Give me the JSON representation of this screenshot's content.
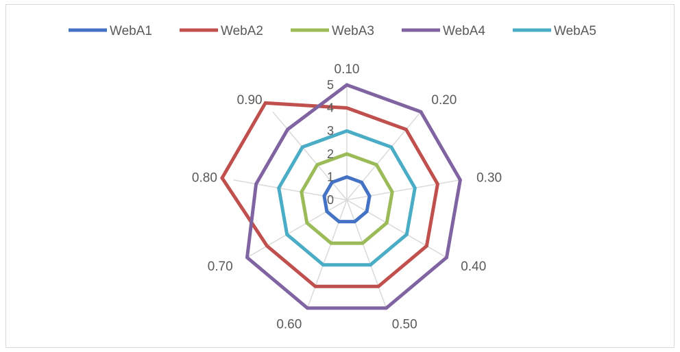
{
  "chart_data": {
    "type": "radar",
    "categories": [
      "0.10",
      "0.20",
      "0.30",
      "0.40",
      "0.50",
      "0.60",
      "0.70",
      "0.80",
      "0.90"
    ],
    "radial_ticks": [
      "0",
      "1",
      "2",
      "3",
      "4",
      "5"
    ],
    "rmax": 5,
    "legend_position": "top",
    "gridlines": false,
    "series": [
      {
        "name": "WebA1",
        "color": "#4472C4",
        "values": [
          1,
          1,
          1,
          1,
          1,
          1,
          1,
          1,
          1
        ]
      },
      {
        "name": "WebA2",
        "color": "#C0504D",
        "values": [
          4,
          4,
          4,
          4,
          4,
          4,
          4,
          5.5,
          5.5
        ]
      },
      {
        "name": "WebA3",
        "color": "#9BBB59",
        "values": [
          2,
          2,
          2,
          2,
          2,
          2,
          2,
          2,
          2
        ]
      },
      {
        "name": "WebA4",
        "color": "#8064A2",
        "values": [
          5,
          5,
          5,
          5,
          5,
          5,
          5,
          4,
          4
        ]
      },
      {
        "name": "WebA5",
        "color": "#4BACC6",
        "values": [
          3,
          3,
          3,
          3,
          3,
          3,
          3,
          3,
          3
        ]
      }
    ]
  }
}
